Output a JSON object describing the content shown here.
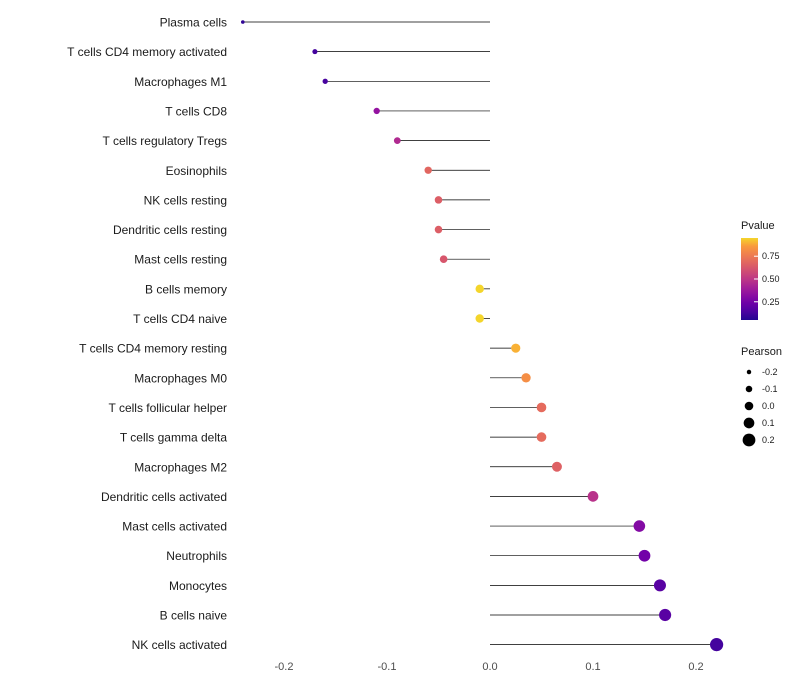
{
  "chart_data": {
    "type": "scatter",
    "subtype": "lollipop",
    "title": "",
    "xlabel": "",
    "ylabel": "",
    "background": "#ffffff",
    "grid": false,
    "legend_position": "right",
    "xlim": [
      -0.27,
      0.24
    ],
    "x_ticks": [
      -0.2,
      -0.1,
      0,
      0.1,
      0.2
    ],
    "x_tick_labels": [
      "-0.2",
      "-0.1",
      "0.0",
      "0.1",
      "0.2"
    ],
    "colormap": "plasma",
    "colormap_stops": [
      "#0d0887",
      "#46039f",
      "#7201a8",
      "#9c179e",
      "#bd3786",
      "#d8576b",
      "#ed7953",
      "#fb9f3a",
      "#f0f921"
    ],
    "stem_color": "#000000",
    "points": [
      {
        "label": "Plasma cells",
        "pearson": -0.24,
        "pvalue": 0.08
      },
      {
        "label": "T cells CD4 memory activated",
        "pearson": -0.17,
        "pvalue": 0.12
      },
      {
        "label": "Macrophages M1",
        "pearson": -0.16,
        "pvalue": 0.13
      },
      {
        "label": "T cells CD8",
        "pearson": -0.11,
        "pvalue": 0.35
      },
      {
        "label": "T cells regulatory  Tregs",
        "pearson": -0.09,
        "pvalue": 0.45
      },
      {
        "label": "Eosinophils",
        "pearson": -0.06,
        "pvalue": 0.68
      },
      {
        "label": "NK cells resting",
        "pearson": -0.05,
        "pvalue": 0.65
      },
      {
        "label": "Dendritic cells resting",
        "pearson": -0.05,
        "pvalue": 0.65
      },
      {
        "label": "Mast cells resting",
        "pearson": -0.045,
        "pvalue": 0.62
      },
      {
        "label": "B cells memory",
        "pearson": -0.01,
        "pvalue": 0.95
      },
      {
        "label": "T cells CD4 naive",
        "pearson": -0.01,
        "pvalue": 0.95
      },
      {
        "label": "T cells CD4 memory resting",
        "pearson": 0.025,
        "pvalue": 0.9
      },
      {
        "label": "Macrophages M0",
        "pearson": 0.035,
        "pvalue": 0.82
      },
      {
        "label": "T cells follicular helper",
        "pearson": 0.05,
        "pvalue": 0.7
      },
      {
        "label": "T cells gamma delta",
        "pearson": 0.05,
        "pvalue": 0.7
      },
      {
        "label": "Macrophages M2",
        "pearson": 0.065,
        "pvalue": 0.66
      },
      {
        "label": "Dendritic cells activated",
        "pearson": 0.1,
        "pvalue": 0.48
      },
      {
        "label": "Mast cells activated",
        "pearson": 0.145,
        "pvalue": 0.3
      },
      {
        "label": "Neutrophils",
        "pearson": 0.15,
        "pvalue": 0.25
      },
      {
        "label": "Monocytes",
        "pearson": 0.165,
        "pvalue": 0.18
      },
      {
        "label": "B cells naive",
        "pearson": 0.17,
        "pvalue": 0.18
      },
      {
        "label": "NK cells activated",
        "pearson": 0.22,
        "pvalue": 0.12
      }
    ],
    "legend": {
      "color": {
        "title": "Pvalue",
        "tick_labels": [
          "0.75",
          "0.50",
          "0.25"
        ],
        "tick_values": [
          0.75,
          0.5,
          0.25
        ],
        "bar_domain": [
          0.05,
          0.95
        ]
      },
      "size": {
        "title": "Pearson",
        "tick_labels": [
          "-0.2",
          "-0.1",
          "0.0",
          "0.1",
          "0.2"
        ],
        "tick_values": [
          -0.2,
          -0.1,
          0,
          0.1,
          0.2
        ]
      }
    }
  }
}
